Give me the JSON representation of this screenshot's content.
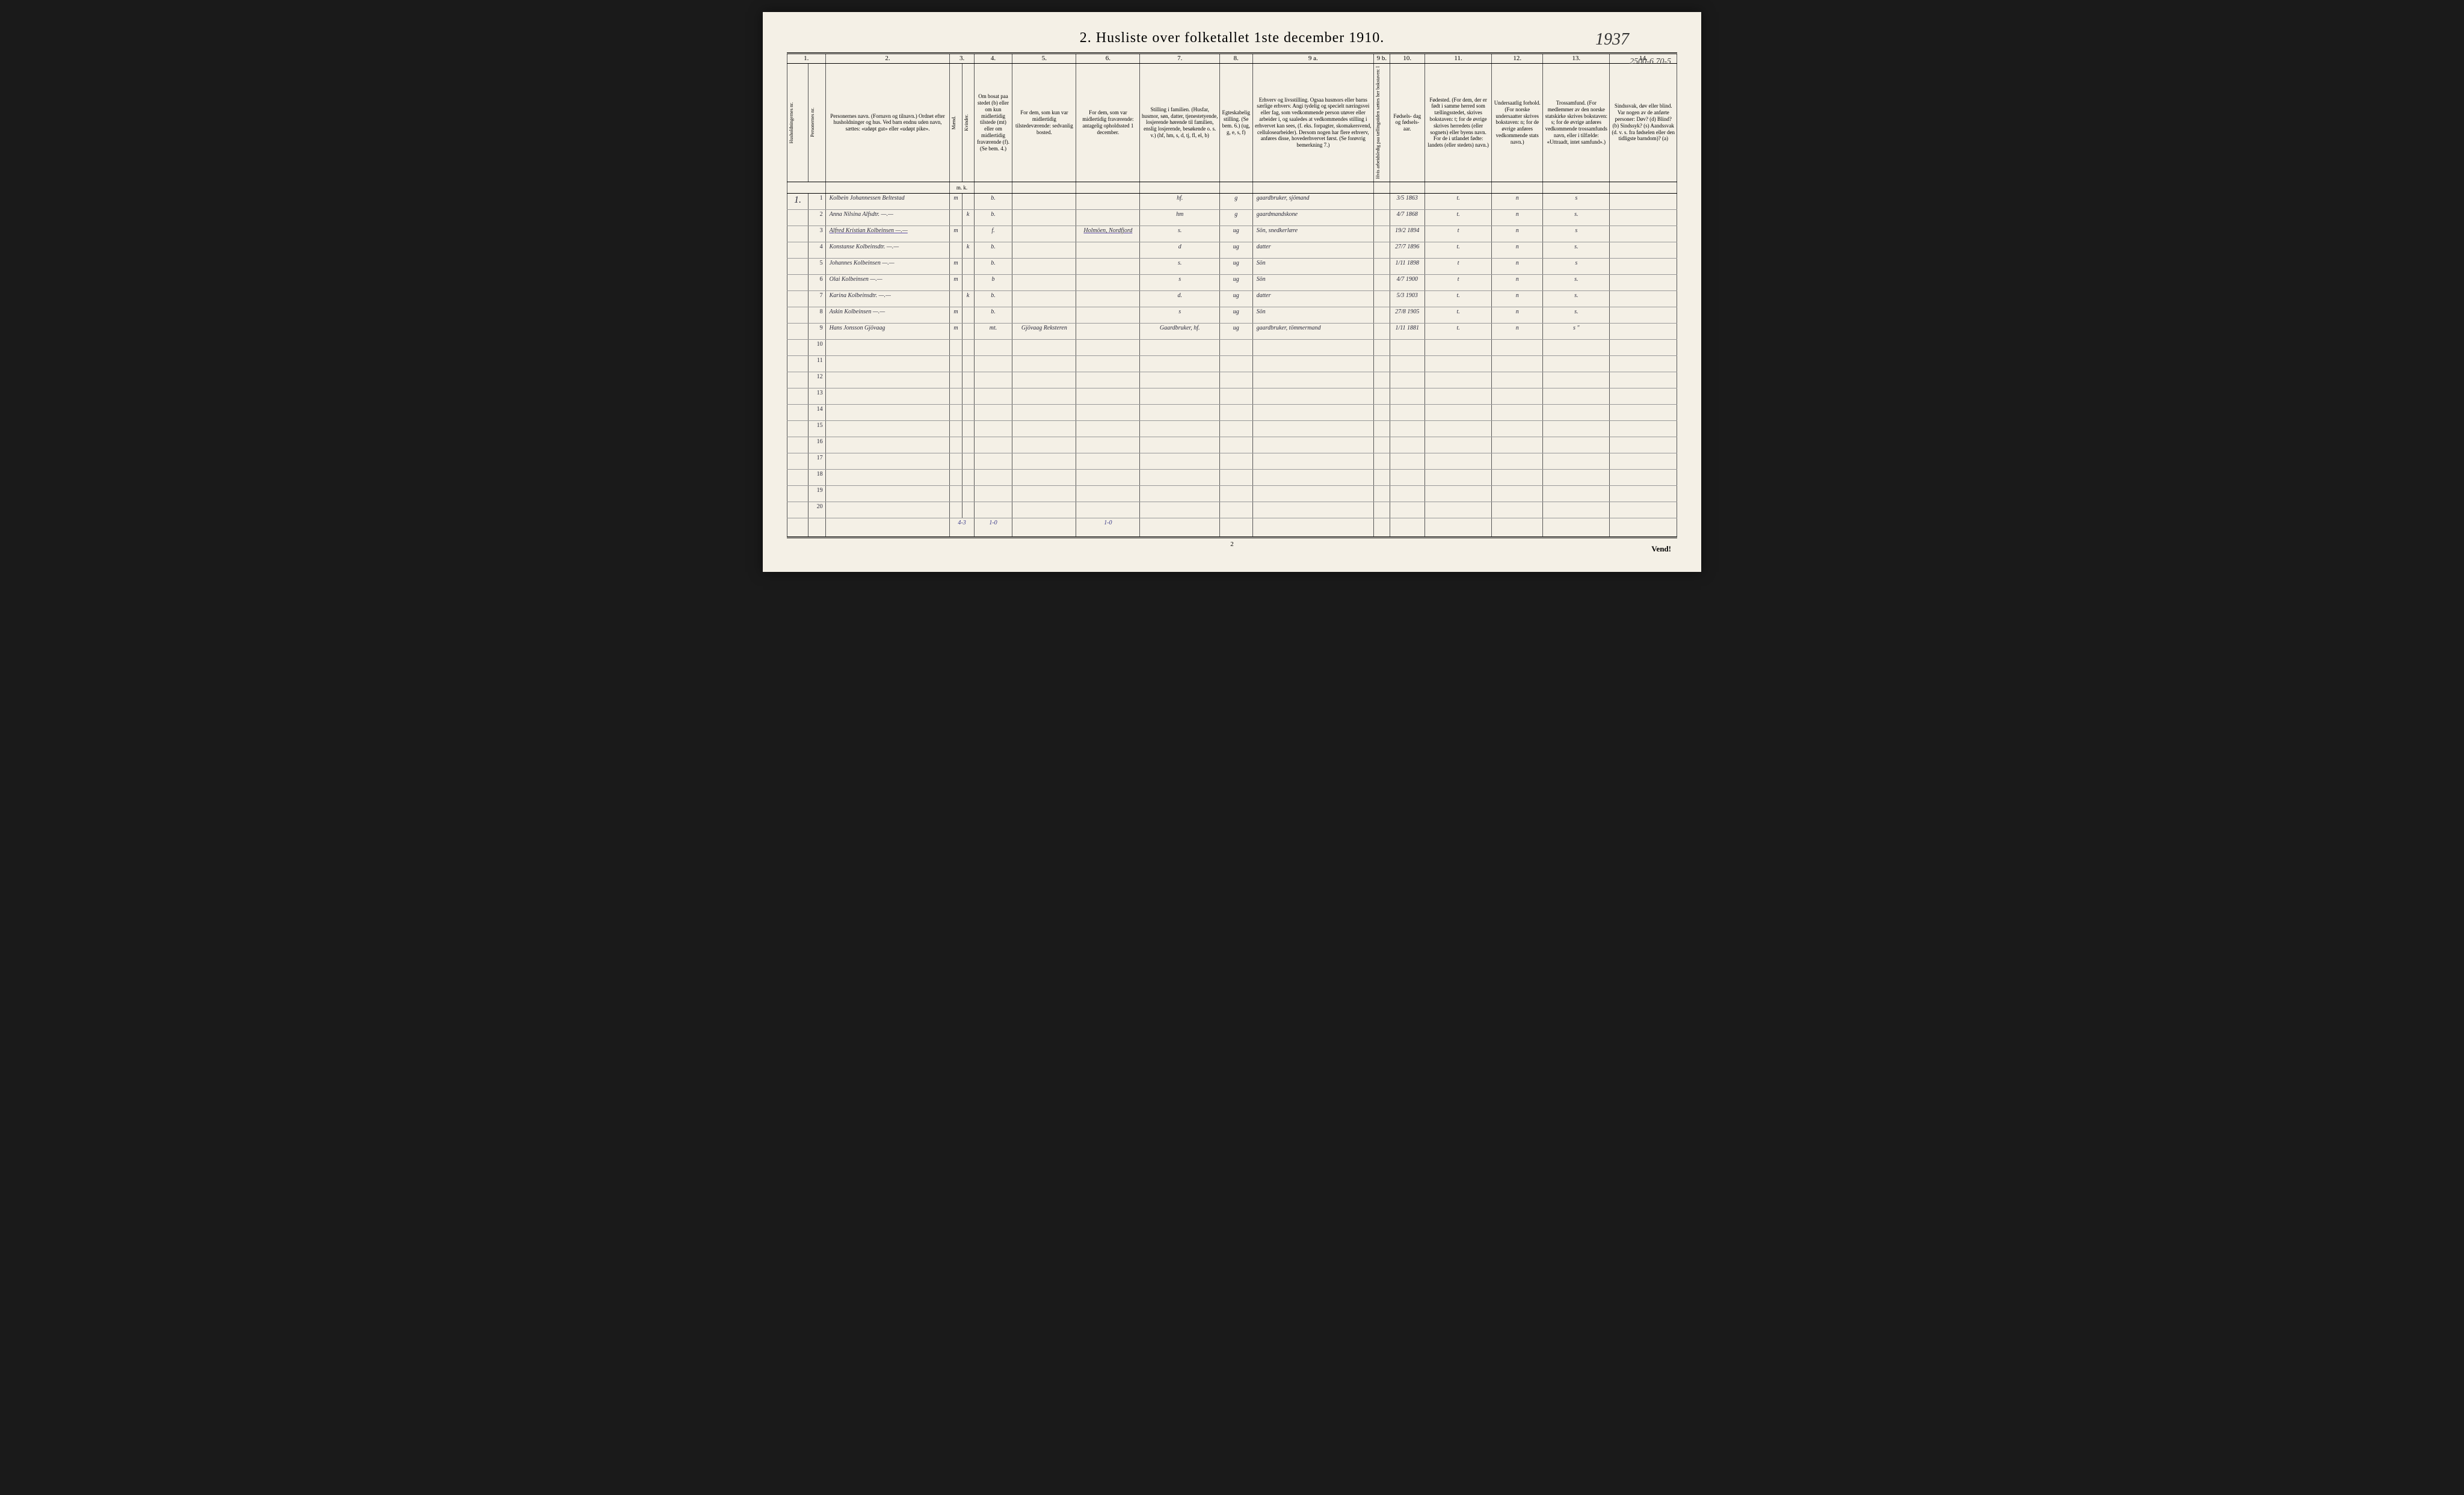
{
  "title": "2.  Husliste over folketallet 1ste december 1910.",
  "year_annotation": "1937",
  "top_right_note": "2500-6 70-5",
  "page_number": "2",
  "vend": "Vend!",
  "column_numbers": [
    "1.",
    "2.",
    "3.",
    "4.",
    "5.",
    "6.",
    "7.",
    "8.",
    "9 a.",
    "9 b.",
    "10.",
    "11.",
    "12.",
    "13.",
    "14."
  ],
  "headers": {
    "hush_nr": "Husholdningernes nr.",
    "pers_nr": "Personernes nr.",
    "name": "Personernes navn.\n(Fornavn og tilnavn.)\nOrdnet efter husholdninger og hus.\nVed barn endnu uden navn, sættes: «udøpt gut» eller «udøpt pike».",
    "kjon": "Kjøn.",
    "kjon_m": "Mænd.",
    "kjon_k": "Kvinder.",
    "bosat": "Om bosat paa stedet (b) eller om kun midlertidig tilstede (mt) eller om midlertidig fraværende (f). (Se bem. 4.)",
    "col5": "For dem, som kun var midlertidig tilstedeværende:\nsedvanlig bosted.",
    "col6": "For dem, som var midlertidig fraværende:\nantagelig opholdssted 1 december.",
    "col7": "Stilling i familien.\n(Husfar, husmor, søn, datter, tjenestetyende, losjerende hørende til familien, enslig losjerende, besøkende o. s. v.)\n(hf, hm, s, d, tj, fl, el, b)",
    "col8": "Egteskabelig stilling.\n(Se bem. 6.)\n(ug, g, e, s, f)",
    "col9a": "Erhverv og livsstilling.\nOgsaa husmors eller barns særlige erhverv.\nAngi tydelig og specielt næringsvei eller fag, som vedkommende person utøver eller arbeider i, og saaledes at vedkommendes stilling i erhvervet kan sees, (f. eks. forpagter, skomakersvend, cellulosearbeider). Dersom nogen har flere erhverv, anføres disse, hovederhvervet først.\n(Se forøvrig bemerkning 7.)",
    "col9b": "Hvis arbeidsledig paa tællingstiden sættes her bokstaven: l",
    "col10": "Fødsels-\ndag\nog\nfødsels-\naar.",
    "col11": "Fødested.\n(For dem, der er født i samme herred som tællingsstedet, skrives bokstaven: t; for de øvrige skrives herredets (eller sognets) eller byens navn. For de i utlandet fødte: landets (eller stedets) navn.)",
    "col12": "Undersaatlig forhold.\n(For norske undersaatter skrives bokstaven: n; for de øvrige anføres vedkommende stats navn.)",
    "col13": "Trossamfund.\n(For medlemmer av den norske statskirke skrives bokstaven: s; for de øvrige anføres vedkommende trossamfunds navn, eller i tilfælde: «Uttraadt, intet samfund».)",
    "col14": "Sindssvak, døv eller blind.\nVar nogen av de anførte personer:\nDøv? (d)\nBlind? (b)\nSindssyk? (s)\nAandssvak (d. v. s. fra fødselen eller den tidligste barndom)? (a)"
  },
  "rows": [
    {
      "hh": "1.",
      "num": "1",
      "name": "Kolbein Johannessen Beltestad",
      "m": "m",
      "k": "",
      "b": "b.",
      "c5": "",
      "c6": "",
      "c7": "hf.",
      "c8": "g",
      "c9": "gaardbruker, sjömand",
      "c10": "3/5 1863",
      "c11": "t.",
      "c12": "n",
      "c13": "s",
      "c14": ""
    },
    {
      "hh": "",
      "num": "2",
      "name": "Anna Nilsina Alfsdtr.   —.—",
      "m": "",
      "k": "k",
      "b": "b.",
      "c5": "",
      "c6": "",
      "c7": "hm",
      "c8": "g",
      "c9": "gaardmandskone",
      "c10": "4/7 1868",
      "c11": "t.",
      "c12": "n",
      "c13": "s.",
      "c14": ""
    },
    {
      "hh": "",
      "num": "3",
      "name": "Alfred Kristian Kolbeinsen —.—",
      "m": "m",
      "k": "",
      "b": "f.",
      "c5": "",
      "c6": "Holmöen, Nordfjord",
      "c7": "s.",
      "c8": "ug",
      "c9": "Sön, snedkerlære",
      "c10": "19/2 1894",
      "c11": "t",
      "c12": "n",
      "c13": "s",
      "c14": "",
      "underlined": true
    },
    {
      "hh": "",
      "num": "4",
      "name": "Konstanse Kolbeinsdtr.   —.—",
      "m": "",
      "k": "k",
      "b": "b.",
      "c5": "",
      "c6": "",
      "c7": "d",
      "c8": "ug",
      "c9": "datter",
      "c10": "27/7 1896",
      "c11": "t.",
      "c12": "n",
      "c13": "s.",
      "c14": ""
    },
    {
      "hh": "",
      "num": "5",
      "name": "Johannes Kolbeinsen   —.—",
      "m": "m",
      "k": "",
      "b": "b.",
      "c5": "",
      "c6": "",
      "c7": "s.",
      "c8": "ug",
      "c9": "Sön",
      "c10": "1/11 1898",
      "c11": "t",
      "c12": "n",
      "c13": "s",
      "c14": ""
    },
    {
      "hh": "",
      "num": "6",
      "name": "Olai  Kolbeinsen   —.—",
      "m": "m",
      "k": "",
      "b": "b",
      "c5": "",
      "c6": "",
      "c7": "s",
      "c8": "ug",
      "c9": "Sön",
      "c10": "4/7 1900",
      "c11": "t",
      "c12": "n",
      "c13": "s.",
      "c14": ""
    },
    {
      "hh": "",
      "num": "7",
      "name": "Karina Kolbeinsdtr.   —.—",
      "m": "",
      "k": "k",
      "b": "b.",
      "c5": "",
      "c6": "",
      "c7": "d.",
      "c8": "ug",
      "c9": "datter",
      "c10": "5/3 1903",
      "c11": "t.",
      "c12": "n",
      "c13": "s.",
      "c14": ""
    },
    {
      "hh": "",
      "num": "8",
      "name": "Askin Kolbeinsen   —.—",
      "m": "m",
      "k": "",
      "b": "b.",
      "c5": "",
      "c6": "",
      "c7": "s",
      "c8": "ug",
      "c9": "Sön",
      "c10": "27/8 1905",
      "c11": "t.",
      "c12": "n",
      "c13": "s.",
      "c14": ""
    },
    {
      "hh": "",
      "num": "9",
      "name": "Hans Jonsson Gjövaag",
      "m": "m",
      "k": "",
      "b": "mt.",
      "c5": "Gjövaag Reksteren",
      "c6": "",
      "c7": "Gaardbruker, hf.",
      "c8": "ug",
      "c9": "gaardbruker, tömmermand",
      "c10": "1/11 1881",
      "c11": "t.",
      "c12": "n",
      "c13": "s  \"",
      "c14": ""
    },
    {
      "hh": "",
      "num": "10",
      "name": "",
      "m": "",
      "k": "",
      "b": "",
      "c5": "",
      "c6": "",
      "c7": "",
      "c8": "",
      "c9": "",
      "c10": "",
      "c11": "",
      "c12": "",
      "c13": "",
      "c14": ""
    },
    {
      "hh": "",
      "num": "11",
      "name": "",
      "m": "",
      "k": "",
      "b": "",
      "c5": "",
      "c6": "",
      "c7": "",
      "c8": "",
      "c9": "",
      "c10": "",
      "c11": "",
      "c12": "",
      "c13": "",
      "c14": ""
    },
    {
      "hh": "",
      "num": "12",
      "name": "",
      "m": "",
      "k": "",
      "b": "",
      "c5": "",
      "c6": "",
      "c7": "",
      "c8": "",
      "c9": "",
      "c10": "",
      "c11": "",
      "c12": "",
      "c13": "",
      "c14": ""
    },
    {
      "hh": "",
      "num": "13",
      "name": "",
      "m": "",
      "k": "",
      "b": "",
      "c5": "",
      "c6": "",
      "c7": "",
      "c8": "",
      "c9": "",
      "c10": "",
      "c11": "",
      "c12": "",
      "c13": "",
      "c14": ""
    },
    {
      "hh": "",
      "num": "14",
      "name": "",
      "m": "",
      "k": "",
      "b": "",
      "c5": "",
      "c6": "",
      "c7": "",
      "c8": "",
      "c9": "",
      "c10": "",
      "c11": "",
      "c12": "",
      "c13": "",
      "c14": ""
    },
    {
      "hh": "",
      "num": "15",
      "name": "",
      "m": "",
      "k": "",
      "b": "",
      "c5": "",
      "c6": "",
      "c7": "",
      "c8": "",
      "c9": "",
      "c10": "",
      "c11": "",
      "c12": "",
      "c13": "",
      "c14": ""
    },
    {
      "hh": "",
      "num": "16",
      "name": "",
      "m": "",
      "k": "",
      "b": "",
      "c5": "",
      "c6": "",
      "c7": "",
      "c8": "",
      "c9": "",
      "c10": "",
      "c11": "",
      "c12": "",
      "c13": "",
      "c14": ""
    },
    {
      "hh": "",
      "num": "17",
      "name": "",
      "m": "",
      "k": "",
      "b": "",
      "c5": "",
      "c6": "",
      "c7": "",
      "c8": "",
      "c9": "",
      "c10": "",
      "c11": "",
      "c12": "",
      "c13": "",
      "c14": ""
    },
    {
      "hh": "",
      "num": "18",
      "name": "",
      "m": "",
      "k": "",
      "b": "",
      "c5": "",
      "c6": "",
      "c7": "",
      "c8": "",
      "c9": "",
      "c10": "",
      "c11": "",
      "c12": "",
      "c13": "",
      "c14": ""
    },
    {
      "hh": "",
      "num": "19",
      "name": "",
      "m": "",
      "k": "",
      "b": "",
      "c5": "",
      "c6": "",
      "c7": "",
      "c8": "",
      "c9": "",
      "c10": "",
      "c11": "",
      "c12": "",
      "c13": "",
      "c14": ""
    },
    {
      "hh": "",
      "num": "20",
      "name": "",
      "m": "",
      "k": "",
      "b": "",
      "c5": "",
      "c6": "",
      "c7": "",
      "c8": "",
      "c9": "",
      "c10": "",
      "c11": "",
      "c12": "",
      "c13": "",
      "c14": ""
    }
  ],
  "footer_totals": {
    "mk": "4-3",
    "bosat": "1-0",
    "c6": "1-0"
  },
  "colors": {
    "paper": "#f4f0e6",
    "ink": "#2a2a3a",
    "pencil": "#3a3a8a",
    "rule": "#555"
  }
}
